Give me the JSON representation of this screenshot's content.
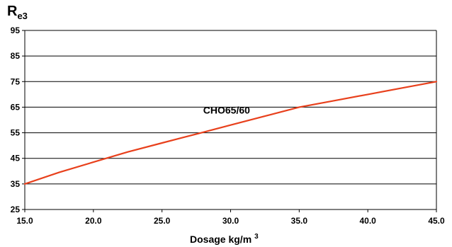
{
  "chart_data": {
    "type": "line",
    "ylabel_main": "R",
    "ylabel_sub": "e3",
    "xlabel": "Dosage kg/m",
    "xlabel_sup": "3",
    "xlim": [
      15.0,
      45.0
    ],
    "ylim": [
      25,
      95
    ],
    "x_ticks": [
      "15.0",
      "20.0",
      "25.0",
      "30.0",
      "35.0",
      "40.0",
      "45.0"
    ],
    "y_ticks": [
      "25",
      "35",
      "45",
      "55",
      "65",
      "75",
      "85",
      "95"
    ],
    "grid": "horizontal",
    "series": [
      {
        "name": "CHO65/60",
        "color": "#e8401c",
        "x": [
          15.0,
          17.5,
          20.0,
          22.5,
          25.0,
          27.5,
          30.0,
          32.5,
          35.0,
          37.5,
          40.0,
          42.5,
          45.0
        ],
        "y": [
          35.0,
          39.5,
          43.5,
          47.5,
          51.0,
          54.5,
          58.0,
          61.5,
          65.0,
          67.5,
          70.0,
          72.5,
          75.0
        ]
      }
    ]
  }
}
